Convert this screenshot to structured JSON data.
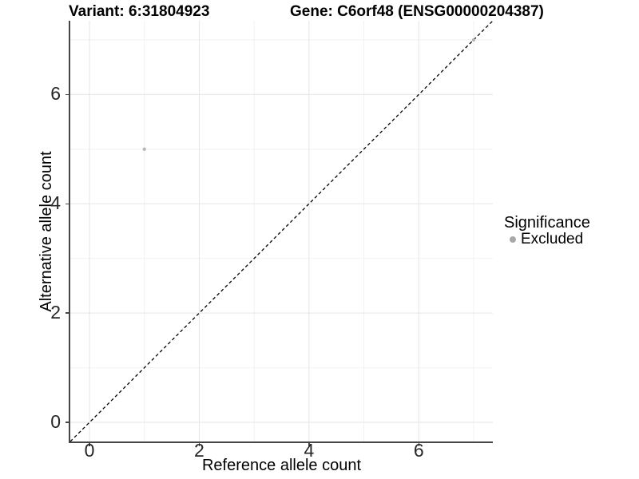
{
  "titles": {
    "variant": "Variant: 6:31804923",
    "gene": "Gene: C6orf48 (ENSG00000204387)"
  },
  "chart_data": {
    "type": "scatter",
    "titles": {
      "variant": "Variant: 6:31804923",
      "gene": "Gene: C6orf48 (ENSG00000204387)"
    },
    "xlabel": "Reference allele count",
    "ylabel": "Alternative allele count",
    "xlim": [
      -0.35,
      7.35
    ],
    "ylim": [
      -0.35,
      7.35
    ],
    "x_ticks": [
      0,
      2,
      4,
      6
    ],
    "y_ticks": [
      0,
      2,
      4,
      6
    ],
    "minor_breaks": [
      1,
      3,
      5,
      7
    ],
    "grid": true,
    "reference_line": {
      "equation": "y = x",
      "style": "dashed",
      "color": "#000000"
    },
    "series": [
      {
        "name": "Excluded",
        "color": "#b4b4b4",
        "points": [
          [
            1,
            5
          ],
          [
            7,
            7
          ]
        ]
      }
    ],
    "legend": {
      "title": "Significance",
      "position": "right",
      "entries": [
        {
          "label": "Excluded",
          "color": "#a8a8a8"
        }
      ]
    }
  },
  "colors": {
    "grid_major": "#e5e5e5",
    "grid_minor": "#f2f2f2",
    "axis_line": "#464646",
    "tick_text": "#262626",
    "point": "#b4b4b4"
  }
}
